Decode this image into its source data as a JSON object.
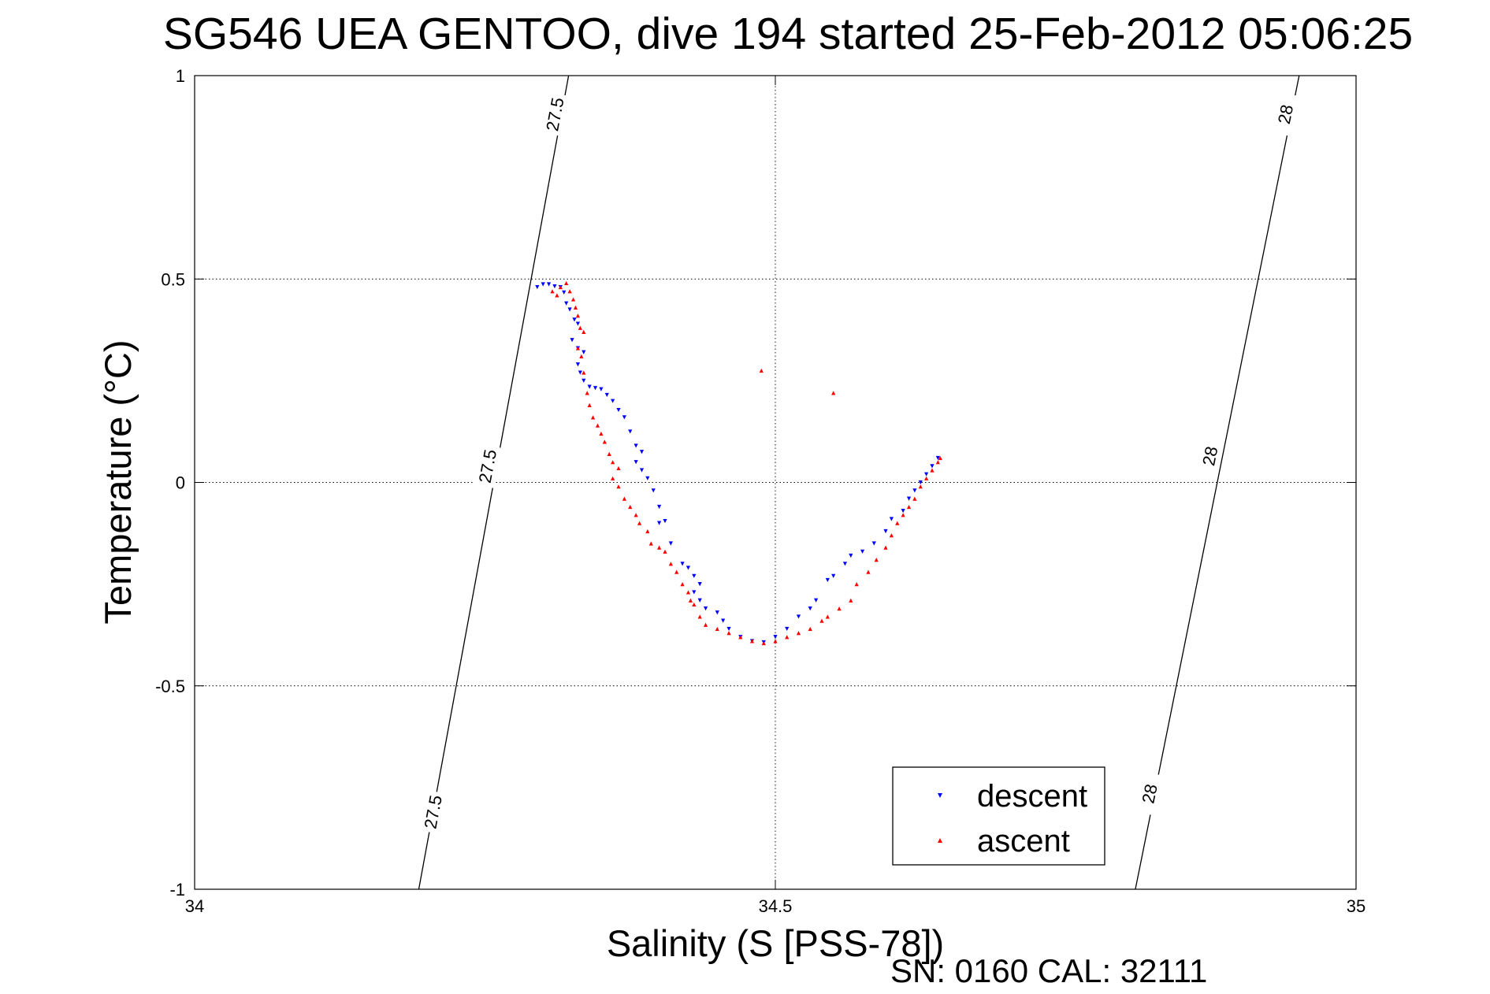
{
  "chart_data": {
    "type": "scatter",
    "title": "SG546 UEA GENTOO, dive 194 started 25-Feb-2012 05:06:25",
    "xlabel": "Salinity (S [PSS-78])",
    "ylabel": "Temperature (°C)",
    "xlim": [
      34,
      35
    ],
    "ylim": [
      -1,
      1
    ],
    "xticks": [
      34,
      34.5,
      35
    ],
    "xtick_labels": [
      "34",
      "34.5",
      "35"
    ],
    "yticks": [
      1,
      0.5,
      0,
      -0.5,
      -1
    ],
    "ytick_labels": [
      "1",
      "0.5",
      "0",
      "-0.5",
      "-1"
    ],
    "grid": true,
    "legend_position": "bottom-right",
    "footer": "SN: 0160  CAL: 32111",
    "isopycnals": [
      {
        "value": 27.5,
        "points": [
          [
            34.193,
            -1.0
          ],
          [
            34.321,
            0.5
          ],
          [
            34.322,
            0.51
          ],
          [
            34.322,
            0.52
          ],
          [
            34.323,
            0.53
          ],
          [
            34.324,
            0.54
          ],
          [
            34.324,
            0.55
          ],
          [
            34.325,
            0.56
          ],
          [
            34.326,
            0.57
          ],
          [
            34.327,
            0.58
          ],
          [
            34.327,
            0.59
          ],
          [
            34.328,
            0.6
          ],
          [
            34.329,
            0.61
          ],
          [
            34.33,
            0.62
          ],
          [
            34.33,
            0.63
          ],
          [
            34.331,
            0.64
          ],
          [
            34.332,
            0.65
          ],
          [
            34.333,
            0.66
          ],
          [
            34.334,
            0.67
          ],
          [
            34.334,
            0.68
          ],
          [
            34.335,
            0.69
          ],
          [
            34.336,
            0.7
          ],
          [
            34.337,
            0.71
          ],
          [
            34.338,
            0.72
          ],
          [
            34.339,
            0.73
          ],
          [
            34.34,
            0.74
          ],
          [
            34.341,
            0.75
          ],
          [
            34.342,
            0.76
          ],
          [
            34.343,
            0.77
          ],
          [
            34.344,
            0.78
          ],
          [
            34.345,
            0.79
          ],
          [
            34.346,
            0.8
          ],
          [
            34.347,
            0.81
          ],
          [
            34.348,
            0.82
          ],
          [
            34.349,
            0.83
          ],
          [
            34.35,
            0.84
          ],
          [
            34.351,
            0.85
          ],
          [
            34.352,
            0.86
          ],
          [
            34.353,
            0.87
          ],
          [
            34.354,
            0.88
          ],
          [
            34.355,
            0.89
          ],
          [
            34.356,
            0.9
          ],
          [
            34.358,
            0.91
          ],
          [
            34.359,
            0.92
          ],
          [
            34.36,
            0.93
          ],
          [
            34.361,
            0.94
          ],
          [
            34.362,
            0.95
          ],
          [
            34.363,
            0.96
          ],
          [
            34.364,
            0.97
          ],
          [
            34.366,
            0.98
          ],
          [
            34.367,
            0.99
          ],
          [
            34.322,
            1.0
          ]
        ],
        "labels": [
          {
            "text": "27.5",
            "x": 34.31,
            "y": 0.905
          },
          {
            "text": "27.5",
            "x": 34.252,
            "y": 0.04
          },
          {
            "text": "27.5",
            "x": 34.205,
            "y": -0.81
          }
        ]
      },
      {
        "value": 28,
        "points": [
          [
            34.81,
            -1.0
          ],
          [
            34.951,
            1.0
          ]
        ],
        "labels": [
          {
            "text": "28",
            "x": 34.939,
            "y": 0.905
          },
          {
            "text": "28",
            "x": 34.874,
            "y": 0.065
          },
          {
            "text": "28",
            "x": 34.822,
            "y": -0.765
          }
        ]
      }
    ],
    "series": [
      {
        "name": "descent",
        "color": "#0000ff",
        "marker": "triangle-down",
        "points": [
          [
            34.295,
            0.48
          ],
          [
            34.3,
            0.487
          ],
          [
            34.305,
            0.487
          ],
          [
            34.31,
            0.482
          ],
          [
            34.315,
            0.48
          ],
          [
            34.318,
            0.467
          ],
          [
            34.32,
            0.44
          ],
          [
            34.323,
            0.425
          ],
          [
            34.327,
            0.4
          ],
          [
            34.33,
            0.39
          ],
          [
            34.325,
            0.35
          ],
          [
            34.33,
            0.33
          ],
          [
            34.335,
            0.32
          ],
          [
            34.33,
            0.29
          ],
          [
            34.332,
            0.27
          ],
          [
            34.335,
            0.25
          ],
          [
            34.34,
            0.235
          ],
          [
            34.345,
            0.232
          ],
          [
            34.35,
            0.229
          ],
          [
            34.355,
            0.215
          ],
          [
            34.36,
            0.2
          ],
          [
            34.365,
            0.178
          ],
          [
            34.37,
            0.16
          ],
          [
            34.375,
            0.125
          ],
          [
            34.38,
            0.09
          ],
          [
            34.385,
            0.075
          ],
          [
            34.38,
            0.05
          ],
          [
            34.385,
            0.03
          ],
          [
            34.39,
            0.01
          ],
          [
            34.395,
            -0.02
          ],
          [
            34.4,
            -0.06
          ],
          [
            34.405,
            -0.095
          ],
          [
            34.4,
            -0.1
          ],
          [
            34.41,
            -0.15
          ],
          [
            34.42,
            -0.2
          ],
          [
            34.425,
            -0.21
          ],
          [
            34.43,
            -0.23
          ],
          [
            34.435,
            -0.25
          ],
          [
            34.43,
            -0.27
          ],
          [
            34.435,
            -0.29
          ],
          [
            34.44,
            -0.31
          ],
          [
            34.45,
            -0.32
          ],
          [
            34.455,
            -0.34
          ],
          [
            34.46,
            -0.36
          ],
          [
            34.47,
            -0.38
          ],
          [
            34.48,
            -0.39
          ],
          [
            34.49,
            -0.393
          ],
          [
            34.5,
            -0.38
          ],
          [
            34.51,
            -0.36
          ],
          [
            34.52,
            -0.33
          ],
          [
            34.53,
            -0.31
          ],
          [
            34.535,
            -0.29
          ],
          [
            34.545,
            -0.24
          ],
          [
            34.55,
            -0.23
          ],
          [
            34.56,
            -0.2
          ],
          [
            34.565,
            -0.18
          ],
          [
            34.575,
            -0.17
          ],
          [
            34.585,
            -0.15
          ],
          [
            34.595,
            -0.12
          ],
          [
            34.6,
            -0.09
          ],
          [
            34.61,
            -0.07
          ],
          [
            34.615,
            -0.04
          ],
          [
            34.62,
            -0.02
          ],
          [
            34.625,
            0.0
          ],
          [
            34.63,
            0.02
          ],
          [
            34.635,
            0.04
          ],
          [
            34.64,
            0.06
          ]
        ]
      },
      {
        "name": "ascent",
        "color": "#ff0000",
        "marker": "triangle-up",
        "points": [
          [
            34.308,
            0.47
          ],
          [
            34.312,
            0.46
          ],
          [
            34.315,
            0.48
          ],
          [
            34.32,
            0.49
          ],
          [
            34.323,
            0.47
          ],
          [
            34.326,
            0.45
          ],
          [
            34.328,
            0.43
          ],
          [
            34.33,
            0.41
          ],
          [
            34.332,
            0.38
          ],
          [
            34.335,
            0.37
          ],
          [
            34.33,
            0.33
          ],
          [
            34.333,
            0.31
          ],
          [
            34.335,
            0.27
          ],
          [
            34.338,
            0.22
          ],
          [
            34.34,
            0.19
          ],
          [
            34.343,
            0.16
          ],
          [
            34.347,
            0.14
          ],
          [
            34.35,
            0.12
          ],
          [
            34.353,
            0.1
          ],
          [
            34.357,
            0.07
          ],
          [
            34.36,
            0.05
          ],
          [
            34.365,
            0.035
          ],
          [
            34.36,
            0.01
          ],
          [
            34.365,
            -0.01
          ],
          [
            34.37,
            -0.04
          ],
          [
            34.375,
            -0.06
          ],
          [
            34.38,
            -0.08
          ],
          [
            34.383,
            -0.1
          ],
          [
            34.39,
            -0.12
          ],
          [
            34.393,
            -0.15
          ],
          [
            34.4,
            -0.16
          ],
          [
            34.405,
            -0.17
          ],
          [
            34.41,
            -0.2
          ],
          [
            34.415,
            -0.22
          ],
          [
            34.42,
            -0.25
          ],
          [
            34.425,
            -0.27
          ],
          [
            34.427,
            -0.29
          ],
          [
            34.43,
            -0.3
          ],
          [
            34.435,
            -0.33
          ],
          [
            34.44,
            -0.35
          ],
          [
            34.45,
            -0.36
          ],
          [
            34.46,
            -0.37
          ],
          [
            34.47,
            -0.38
          ],
          [
            34.48,
            -0.39
          ],
          [
            34.49,
            -0.395
          ],
          [
            34.5,
            -0.39
          ],
          [
            34.51,
            -0.38
          ],
          [
            34.52,
            -0.37
          ],
          [
            34.53,
            -0.36
          ],
          [
            34.54,
            -0.34
          ],
          [
            34.545,
            -0.33
          ],
          [
            34.555,
            -0.31
          ],
          [
            34.565,
            -0.29
          ],
          [
            34.57,
            -0.25
          ],
          [
            34.58,
            -0.22
          ],
          [
            34.587,
            -0.19
          ],
          [
            34.595,
            -0.16
          ],
          [
            34.6,
            -0.13
          ],
          [
            34.605,
            -0.1
          ],
          [
            34.61,
            -0.08
          ],
          [
            34.615,
            -0.06
          ],
          [
            34.62,
            -0.04
          ],
          [
            34.625,
            -0.01
          ],
          [
            34.63,
            0.01
          ],
          [
            34.635,
            0.03
          ],
          [
            34.64,
            0.05
          ],
          [
            34.642,
            0.06
          ],
          [
            34.488,
            0.275
          ],
          [
            34.55,
            0.22
          ]
        ]
      }
    ]
  }
}
